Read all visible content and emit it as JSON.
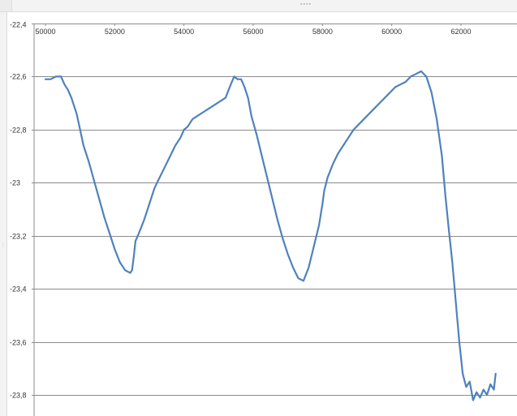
{
  "chart_data": {
    "type": "line",
    "title": "",
    "xlabel": "",
    "ylabel": "",
    "xlim": [
      50000,
      63000
    ],
    "ylim": [
      -23.9,
      -22.4
    ],
    "x_ticks": [
      "50000",
      "52000",
      "54000",
      "56000",
      "58000",
      "60000",
      "62000"
    ],
    "x_tick_values": [
      50000,
      52000,
      54000,
      56000,
      58000,
      60000,
      62000
    ],
    "y_ticks": [
      "-22,4",
      "-22,6",
      "-22,8",
      "-23",
      "-23,2",
      "-23,4",
      "-23,6",
      "-23,8"
    ],
    "y_tick_values": [
      -22.4,
      -22.6,
      -22.8,
      -23.0,
      -23.2,
      -23.4,
      -23.6,
      -23.8
    ],
    "grid": "horizontal",
    "legend": "none",
    "line_color": "#4f81bd",
    "grid_color": "#8c8c8c",
    "series": [
      {
        "x": [
          50000,
          50150,
          50300,
          50450,
          50550,
          50650,
          50750,
          50900,
          51000,
          51100,
          51250,
          51400,
          51550,
          51700,
          51850,
          52000,
          52150,
          52300,
          52450,
          52500,
          52550,
          52600,
          52700,
          52850,
          53000,
          53150,
          53300,
          53450,
          53600,
          53750,
          53900,
          54000,
          54100,
          54150,
          54250,
          55200,
          55350,
          55450,
          55550,
          55650,
          55750,
          55850,
          55950,
          56100,
          56250,
          56400,
          56550,
          56700,
          56850,
          57000,
          57150,
          57300,
          57450,
          57600,
          57750,
          57900,
          58000,
          58050,
          58150,
          58300,
          58450,
          58600,
          58750,
          58900,
          59050,
          59200,
          59350,
          59500,
          59650,
          59800,
          59950,
          60100,
          60250,
          60400,
          60550,
          60700,
          60850,
          61000,
          61150,
          61300,
          61450,
          61550,
          61650,
          61750,
          61850,
          61950,
          62050,
          62150,
          62250,
          62350,
          62450,
          62550,
          62650,
          62750,
          62850,
          62950,
          63000
        ],
        "y": [
          -22.61,
          -22.61,
          -22.6,
          -22.6,
          -22.63,
          -22.65,
          -22.68,
          -22.74,
          -22.8,
          -22.86,
          -22.92,
          -22.99,
          -23.06,
          -23.13,
          -23.19,
          -23.25,
          -23.3,
          -23.33,
          -23.34,
          -23.33,
          -23.28,
          -23.22,
          -23.19,
          -23.14,
          -23.08,
          -23.02,
          -22.98,
          -22.94,
          -22.9,
          -22.86,
          -22.83,
          -22.8,
          -22.79,
          -22.78,
          -22.76,
          -22.68,
          -22.63,
          -22.6,
          -22.61,
          -22.61,
          -22.64,
          -22.68,
          -22.75,
          -22.82,
          -22.9,
          -22.98,
          -23.06,
          -23.14,
          -23.21,
          -23.27,
          -23.32,
          -23.36,
          -23.37,
          -23.32,
          -23.24,
          -23.16,
          -23.08,
          -23.03,
          -22.98,
          -22.93,
          -22.89,
          -22.86,
          -22.83,
          -22.8,
          -22.78,
          -22.76,
          -22.74,
          -22.72,
          -22.7,
          -22.68,
          -22.66,
          -22.64,
          -22.63,
          -22.62,
          -22.6,
          -22.59,
          -22.58,
          -22.6,
          -22.66,
          -22.76,
          -22.9,
          -23.05,
          -23.18,
          -23.3,
          -23.45,
          -23.6,
          -23.72,
          -23.77,
          -23.75,
          -23.82,
          -23.79,
          -23.81,
          -23.78,
          -23.8,
          -23.76,
          -23.78,
          -23.72
        ]
      }
    ]
  }
}
